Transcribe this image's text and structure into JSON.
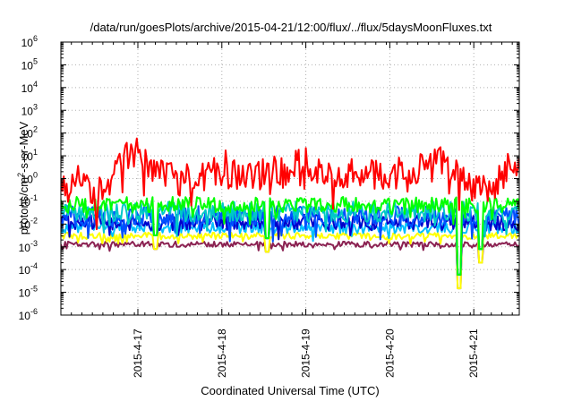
{
  "chart_data": {
    "type": "line",
    "title": "/data/run/goesPlots/archive/2015-04-21/12:00/flux/../flux/5daysMoonFluxes.txt",
    "xlabel": "Coordinated Universal Time (UTC)",
    "ylabel_parts": [
      "protons/cm",
      "2",
      "-s-sr-MeV"
    ],
    "y_scale": "log",
    "ylim": [
      1e-06,
      1000000.0
    ],
    "y_ticks": [
      {
        "base": "10",
        "exp": "-6"
      },
      {
        "base": "10",
        "exp": "-5"
      },
      {
        "base": "10",
        "exp": "-4"
      },
      {
        "base": "10",
        "exp": "-3"
      },
      {
        "base": "10",
        "exp": "-2"
      },
      {
        "base": "10",
        "exp": "-1"
      },
      {
        "base": "10",
        "exp": "0"
      },
      {
        "base": "10",
        "exp": "1"
      },
      {
        "base": "10",
        "exp": "2"
      },
      {
        "base": "10",
        "exp": "3"
      },
      {
        "base": "10",
        "exp": "4"
      },
      {
        "base": "10",
        "exp": "5"
      },
      {
        "base": "10",
        "exp": "6"
      }
    ],
    "xlim": [
      "2015-04-16T02:00",
      "2015-04-21T13:00"
    ],
    "x_ticks": [
      "2015-4-17",
      "2015-4-18",
      "2015-4-19",
      "2015-4-20",
      "2015-4-21"
    ],
    "grid": true,
    "series": [
      {
        "color": "#ff0000",
        "mean": 1.0,
        "noise": 0.7,
        "seed": 11,
        "x": [
          "2015-04-16T02:00",
          "2015-04-16T08:00",
          "2015-04-16T12:00",
          "2015-04-16T16:00",
          "2015-04-16T20:00",
          "2015-04-17T00:00",
          "2015-04-17T04:00",
          "2015-04-17T08:00",
          "2015-04-17T12:00",
          "2015-04-17T16:00",
          "2015-04-17T20:00",
          "2015-04-18T00:00",
          "2015-04-18T06:00",
          "2015-04-18T12:00",
          "2015-04-18T18:00",
          "2015-04-19T00:00",
          "2015-04-19T06:00",
          "2015-04-19T12:00",
          "2015-04-19T18:00",
          "2015-04-20T00:00",
          "2015-04-20T06:00",
          "2015-04-20T12:00",
          "2015-04-20T16:00",
          "2015-04-20T20:00",
          "2015-04-21T00:00",
          "2015-04-21T04:00",
          "2015-04-21T08:00",
          "2015-04-21T12:00",
          "2015-04-21T13:00"
        ],
        "y": [
          0.3,
          1.0,
          0.2,
          0.5,
          10,
          15,
          3,
          2,
          0.8,
          1.5,
          1.0,
          5,
          0.8,
          1.5,
          3,
          5,
          2,
          2,
          1.5,
          1.5,
          2.5,
          3.5,
          6,
          1.8,
          0.3,
          0.4,
          1.0,
          8,
          7
        ]
      },
      {
        "color": "#00ff00",
        "mean": 0.07,
        "noise": 0.35,
        "seed": 23,
        "x": [
          "2015-04-16T02:00",
          "2015-04-21T13:00"
        ],
        "y": [
          0.07,
          0.07
        ]
      },
      {
        "color": "#00c8c8",
        "mean": 0.035,
        "noise": 0.45,
        "seed": 37,
        "x": [
          "2015-04-16T02:00",
          "2015-04-21T13:00"
        ],
        "y": [
          0.035,
          0.035
        ]
      },
      {
        "color": "#0050ff",
        "mean": 0.022,
        "noise": 0.45,
        "seed": 41,
        "x": [
          "2015-04-16T02:00",
          "2015-04-21T13:00"
        ],
        "y": [
          0.022,
          0.022
        ]
      },
      {
        "color": "#0000cc",
        "mean": 0.012,
        "noise": 0.35,
        "seed": 53,
        "x": [
          "2015-04-16T02:00",
          "2015-04-21T13:00"
        ],
        "y": [
          0.012,
          0.012
        ]
      },
      {
        "color": "#00bfff",
        "mean": 0.007,
        "noise": 0.25,
        "seed": 61,
        "x": [
          "2015-04-16T02:00",
          "2015-04-21T13:00"
        ],
        "y": [
          0.007,
          0.007
        ]
      },
      {
        "color": "#ffff00",
        "mean": 0.003,
        "noise": 0.15,
        "seed": 71,
        "x": [
          "2015-04-16T02:00",
          "2015-04-21T13:00"
        ],
        "y": [
          0.003,
          0.003
        ]
      },
      {
        "color": "#8b2252",
        "mean": 0.0013,
        "noise": 0.12,
        "seed": 83,
        "x": [
          "2015-04-16T02:00",
          "2015-04-21T13:00"
        ],
        "y": [
          0.0013,
          0.0013
        ]
      }
    ],
    "dips": [
      {
        "x": "2015-04-17T05:00",
        "y": 0.0008
      },
      {
        "x": "2015-04-18T13:00",
        "y": 0.0006
      },
      {
        "x": "2015-04-20T20:00",
        "y": 1.5e-05
      },
      {
        "x": "2015-04-21T02:00",
        "y": 0.0002
      }
    ]
  }
}
